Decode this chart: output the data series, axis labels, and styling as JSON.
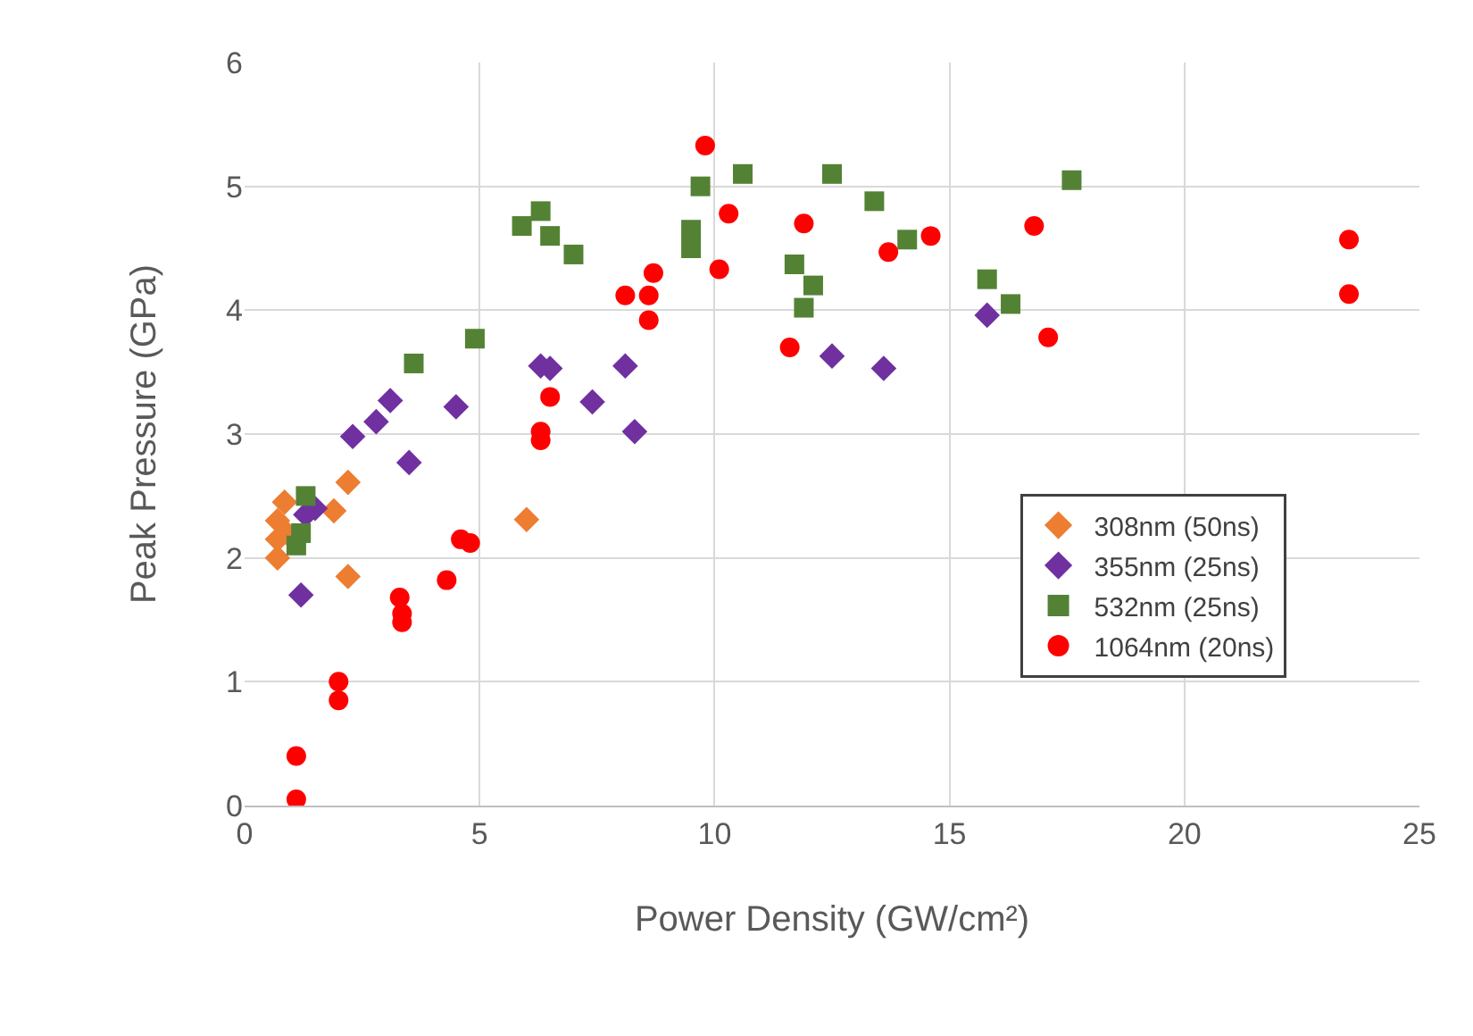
{
  "chart_data": {
    "type": "scatter",
    "xlabel": "Power Density (GW/cm²)",
    "ylabel": "Peak Pressure (GPa)",
    "xlim": [
      0,
      25
    ],
    "xticks": [
      0,
      5,
      10,
      15,
      20,
      25
    ],
    "ylim": [
      0,
      6
    ],
    "yticks": [
      0,
      1,
      2,
      3,
      4,
      5,
      6
    ],
    "grid": true,
    "legend": "right",
    "series": [
      {
        "name": "308nm (50ns)",
        "color": "#ed7d31",
        "marker": "diamond",
        "x": [
          0.7,
          0.7,
          0.7,
          0.85,
          0.9,
          1.9,
          2.2,
          2.2,
          6.0
        ],
        "values": [
          2.0,
          2.15,
          2.3,
          2.45,
          2.2,
          2.38,
          2.61,
          1.85,
          2.31
        ]
      },
      {
        "name": "355nm (25ns)",
        "color": "#7030a0",
        "marker": "diamond",
        "x": [
          1.3,
          1.5,
          1.2,
          2.3,
          2.8,
          3.1,
          3.5,
          4.5,
          6.3,
          6.5,
          7.4,
          8.1,
          8.3,
          12.5,
          13.6,
          15.8
        ],
        "values": [
          2.35,
          2.4,
          1.7,
          2.98,
          3.1,
          3.27,
          2.77,
          3.22,
          3.55,
          3.53,
          3.26,
          3.55,
          3.02,
          3.63,
          3.53,
          3.96
        ]
      },
      {
        "name": "532nm (25ns)",
        "color": "#548235",
        "marker": "square",
        "x": [
          1.1,
          1.2,
          1.3,
          3.6,
          4.9,
          5.9,
          6.3,
          6.5,
          7.0,
          9.5,
          9.5,
          9.7,
          10.6,
          11.7,
          12.1,
          11.9,
          12.5,
          13.4,
          14.1,
          15.8,
          16.3,
          17.6
        ],
        "values": [
          2.1,
          2.2,
          2.5,
          3.57,
          3.77,
          4.68,
          4.8,
          4.6,
          4.45,
          4.5,
          4.65,
          5.0,
          5.1,
          4.37,
          4.2,
          4.02,
          5.1,
          4.88,
          4.57,
          4.25,
          4.05,
          5.05
        ]
      },
      {
        "name": "1064nm (20ns)",
        "color": "#ff0000",
        "marker": "circle",
        "x": [
          1.1,
          1.1,
          2.0,
          2.0,
          3.3,
          3.35,
          3.35,
          4.3,
          4.6,
          4.8,
          6.3,
          6.3,
          6.5,
          8.1,
          8.6,
          8.6,
          8.7,
          9.8,
          10.1,
          10.3,
          11.6,
          11.9,
          13.7,
          14.6,
          16.8,
          17.1,
          23.5,
          23.5
        ],
        "values": [
          0.05,
          0.4,
          0.85,
          1.0,
          1.68,
          1.55,
          1.48,
          1.82,
          2.15,
          2.12,
          2.95,
          3.02,
          3.3,
          4.12,
          4.12,
          3.92,
          4.3,
          5.33,
          4.33,
          4.78,
          3.7,
          4.7,
          4.47,
          4.6,
          4.68,
          3.78,
          4.57,
          4.13
        ]
      }
    ]
  }
}
